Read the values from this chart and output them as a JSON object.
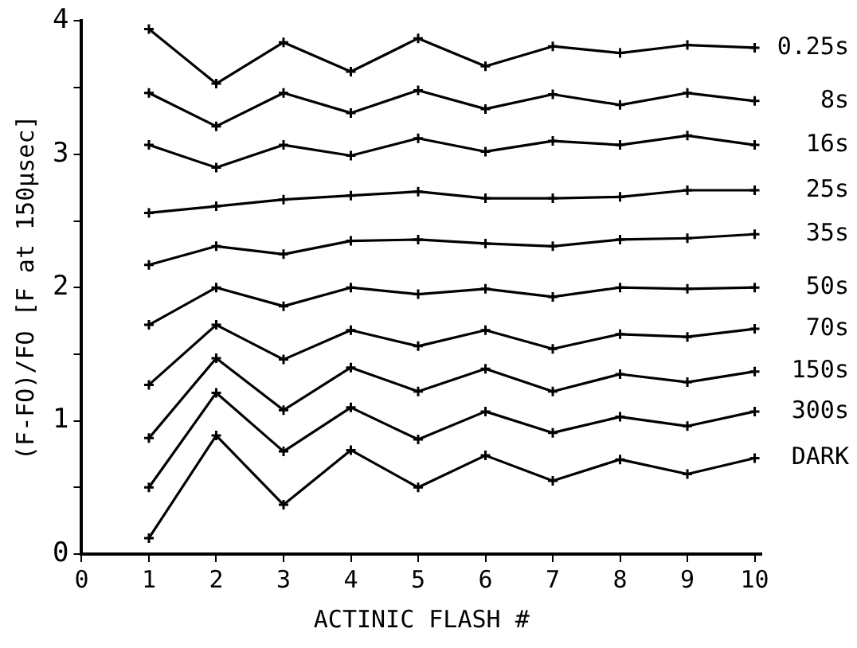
{
  "chart_data": {
    "type": "line",
    "xlabel": "ACTINIC FLASH #",
    "ylabel": "(F-FO)/FO [F at 150μsec]",
    "x": [
      1,
      2,
      3,
      4,
      5,
      6,
      7,
      8,
      9,
      10
    ],
    "xlim": [
      0,
      10.1
    ],
    "xticks": [
      0,
      1,
      2,
      3,
      4,
      5,
      6,
      7,
      8,
      9,
      10
    ],
    "ylim": [
      0,
      4
    ],
    "yticks": [
      0,
      {
        "value": 0.5,
        "label": null
      },
      1,
      {
        "value": 1.5,
        "label": null
      },
      2,
      {
        "value": 2.5,
        "label": null
      },
      3,
      {
        "value": 3.5,
        "label": null
      },
      4
    ],
    "grid": false,
    "legend": false,
    "marker": "cross",
    "line_style": "solid",
    "series": [
      {
        "name": "0.25s",
        "color": "#000000",
        "values": [
          3.94,
          3.53,
          3.84,
          3.62,
          3.87,
          3.66,
          3.81,
          3.76,
          3.82,
          3.8
        ]
      },
      {
        "name": "8s",
        "color": "#000000",
        "values": [
          3.46,
          3.21,
          3.46,
          3.31,
          3.48,
          3.34,
          3.45,
          3.37,
          3.46,
          3.4
        ]
      },
      {
        "name": "16s",
        "color": "#000000",
        "values": [
          3.07,
          2.9,
          3.07,
          2.99,
          3.12,
          3.02,
          3.1,
          3.07,
          3.14,
          3.07
        ]
      },
      {
        "name": "25s",
        "color": "#000000",
        "values": [
          2.56,
          2.61,
          2.66,
          2.69,
          2.72,
          2.67,
          2.67,
          2.68,
          2.73,
          2.73
        ]
      },
      {
        "name": "35s",
        "color": "#000000",
        "values": [
          2.17,
          2.31,
          2.25,
          2.35,
          2.36,
          2.33,
          2.31,
          2.36,
          2.37,
          2.4
        ]
      },
      {
        "name": "50s",
        "color": "#000000",
        "values": [
          1.72,
          2.0,
          1.86,
          2.0,
          1.95,
          1.99,
          1.93,
          2.0,
          1.99,
          2.0
        ]
      },
      {
        "name": "70s",
        "color": "#000000",
        "values": [
          1.27,
          1.72,
          1.46,
          1.68,
          1.56,
          1.68,
          1.54,
          1.65,
          1.63,
          1.69
        ]
      },
      {
        "name": "150s",
        "color": "#000000",
        "values": [
          0.87,
          1.47,
          1.08,
          1.4,
          1.22,
          1.39,
          1.22,
          1.35,
          1.29,
          1.37
        ]
      },
      {
        "name": "300s",
        "color": "#000000",
        "values": [
          0.5,
          1.21,
          0.77,
          1.1,
          0.86,
          1.07,
          0.91,
          1.03,
          0.96,
          1.07
        ]
      },
      {
        "name": "DARK",
        "color": "#000000",
        "values": [
          0.12,
          0.89,
          0.37,
          0.78,
          0.5,
          0.74,
          0.55,
          0.71,
          0.6,
          0.72
        ]
      }
    ]
  }
}
